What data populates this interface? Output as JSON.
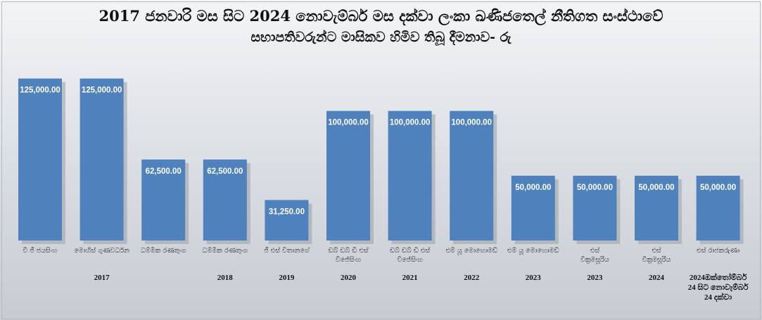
{
  "chart_data": {
    "type": "bar",
    "title": "2017 ජනවාරි මස සිට 2024 නොවැම්බර් මස දක්වා ලංකා ඛණිජතෙල් නීතිගත සංස්ථාවේ",
    "subtitle": "සභාපතිවරුන්ට මාසිකව හිමිව තිබූ දීමනාව- රු",
    "xlabel": "",
    "ylabel": "",
    "ylim": [
      0,
      140000
    ],
    "grid": false,
    "categories": [
      "වී ජී ජයසිංහ",
      "මොහිස් ගුණවර්ධන",
      "ධම්මික රණතුංග",
      "ධම්මික රණතුංග",
      "ජී එස් විතානගේ",
      "ඩබ් ඩබ් ඩී එස් විජේසිංහ",
      "ඩබ් ඩබ් ඩී එස් විජේසිංහ",
      "එම් යූ මොහොමඩ්",
      "එම් යූ මොහොමඩ්",
      "එස් වික්‍රමසූරිය",
      "එස් වික්‍රමසූරිය",
      "එස් රාජකරුණා"
    ],
    "years": [
      "",
      "2017",
      "",
      "2018",
      "2019",
      "2020",
      "2021",
      "2022",
      "2023",
      "2023",
      "2024",
      "2024ඔක්තෝම්බර් 24 සිට නොවැම්බර් 24 දක්වා"
    ],
    "values": [
      125000,
      125000,
      62500,
      62500,
      31250,
      100000,
      100000,
      100000,
      50000,
      50000,
      50000,
      50000
    ],
    "value_labels": [
      "125,000.00",
      "125,000.00",
      "62,500.00",
      "62,500.00",
      "31,250.00",
      "100,000.00",
      "100,000.00",
      "100,000.00",
      "50,000.00",
      "50,000.00",
      "50,000.00",
      "50,000.00"
    ],
    "colors": {
      "bar": "#4f81bd",
      "bar_shadow": "#9aa0a7",
      "label": "#ffffff",
      "text": "#111111"
    }
  }
}
